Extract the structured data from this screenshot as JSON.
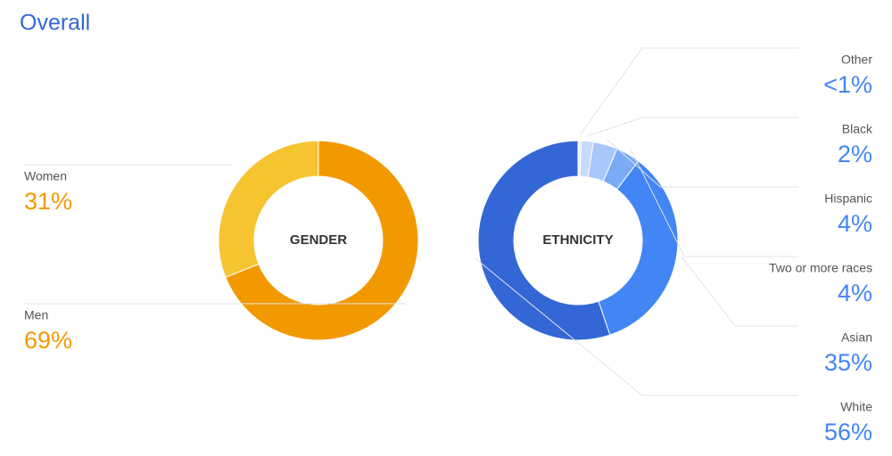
{
  "title": "Overall",
  "chart_data": [
    {
      "type": "pie",
      "title": "GENDER",
      "categories": [
        "Women",
        "Men"
      ],
      "values": [
        31,
        69
      ],
      "value_labels": [
        "31%",
        "69%"
      ],
      "colors": [
        "#f6c430",
        "#f29900"
      ],
      "label_color": "#f29900"
    },
    {
      "type": "pie",
      "title": "ETHNICITY",
      "categories": [
        "Other",
        "Black",
        "Hispanic",
        "Two or more races",
        "Asian",
        "White"
      ],
      "values": [
        0.5,
        2,
        4,
        4,
        35,
        56
      ],
      "value_labels": [
        "<1%",
        "2%",
        "4%",
        "4%",
        "35%",
        "56%"
      ],
      "colors": [
        "#e8f0fe",
        "#c6dafc",
        "#a8c7fa",
        "#7baaf7",
        "#4285f4",
        "#3367d6"
      ],
      "label_color": "#4285f4"
    }
  ]
}
